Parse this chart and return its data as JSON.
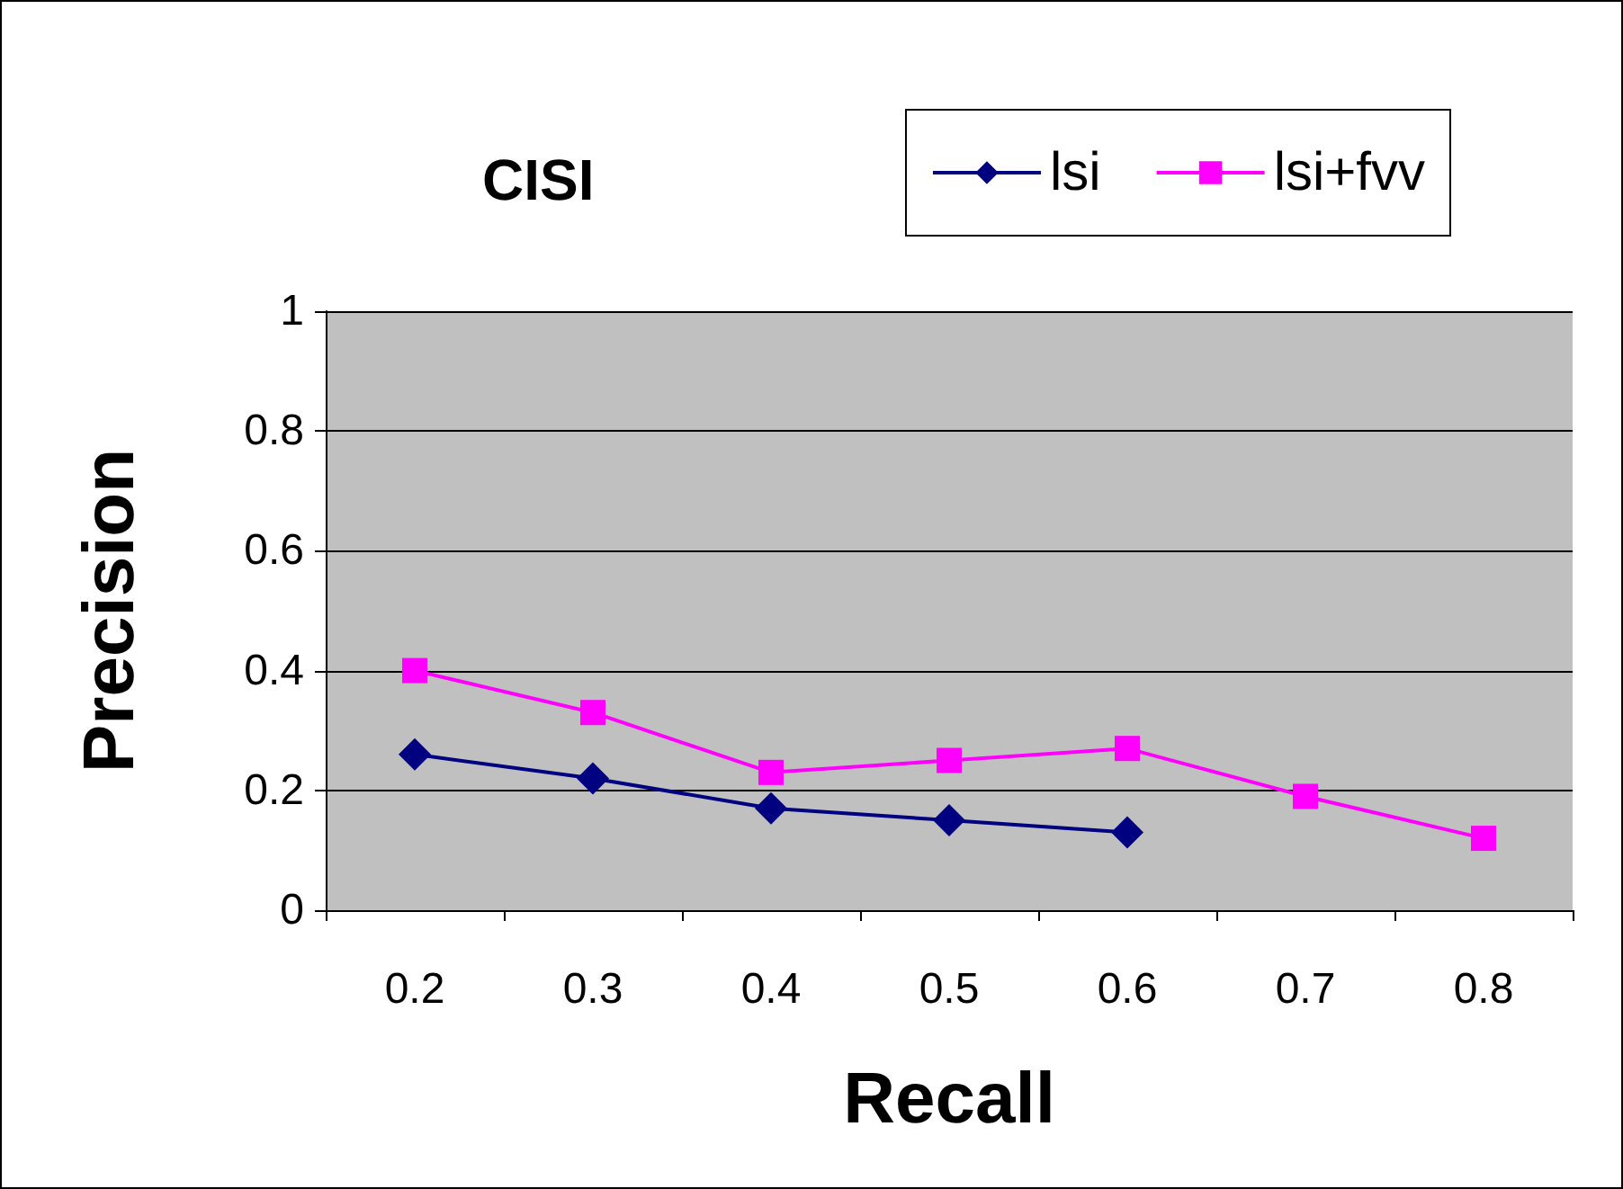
{
  "chart_data": {
    "type": "line",
    "title": "CISI",
    "xlabel": "Recall",
    "ylabel": "Precision",
    "categories": [
      "0.2",
      "0.3",
      "0.4",
      "0.5",
      "0.6",
      "0.7",
      "0.8"
    ],
    "series": [
      {
        "name": "lsi",
        "color": "#000080",
        "marker": "diamond",
        "values": [
          0.26,
          0.22,
          0.17,
          0.15,
          0.13,
          null,
          null
        ]
      },
      {
        "name": "lsi+fvv",
        "color": "#ff00ff",
        "marker": "square",
        "values": [
          0.4,
          0.33,
          0.23,
          0.25,
          0.27,
          0.19,
          0.12
        ]
      }
    ],
    "ylim": [
      0,
      1
    ],
    "yticks": [
      0,
      0.2,
      0.4,
      0.6,
      0.8,
      1
    ],
    "grid": "y",
    "legend": "top right"
  }
}
